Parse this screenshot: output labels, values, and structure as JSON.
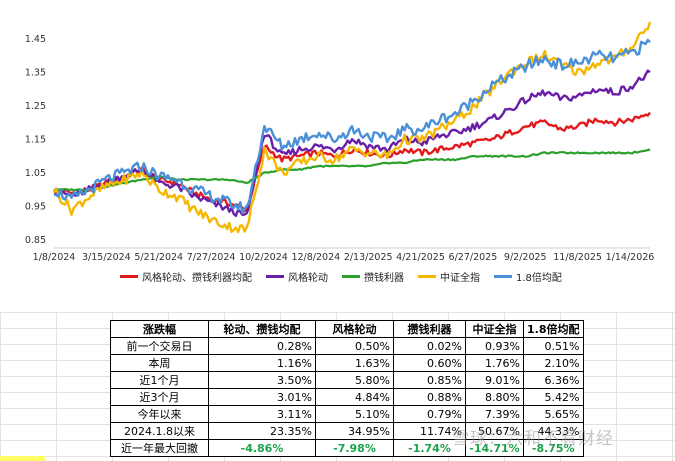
{
  "chart_data": {
    "type": "line",
    "title": "",
    "xlabel": "",
    "ylabel": "",
    "x_ticks": [
      "1/8/2024",
      "3/15/2024",
      "5/21/2024",
      "7/27/2024",
      "10/2/2024",
      "12/8/2024",
      "2/13/2025",
      "4/21/2025",
      "6/27/2025",
      "9/2/2025",
      "11/8/2025",
      "1/14/2026"
    ],
    "y_ticks": [
      "0.85",
      "0.95",
      "1.05",
      "1.15",
      "1.25",
      "1.35",
      "1.45"
    ],
    "ylim": [
      0.85,
      1.5
    ],
    "grid": false,
    "legend_position": "bottom",
    "series": [
      {
        "name": "风格轮动、攒钱利器均配",
        "color": "#e31a1c",
        "values": [
          1.0,
          0.99,
          1.0,
          1.02,
          1.04,
          1.06,
          1.03,
          1.02,
          0.99,
          0.97,
          0.96,
          0.94,
          1.13,
          1.09,
          1.1,
          1.11,
          1.1,
          1.12,
          1.11,
          1.1,
          1.12,
          1.11,
          1.12,
          1.13,
          1.14,
          1.15,
          1.17,
          1.19,
          1.2,
          1.18,
          1.19,
          1.21,
          1.2,
          1.21,
          1.23
        ]
      },
      {
        "name": "风格轮动",
        "color": "#6a1fa8",
        "values": [
          1.0,
          0.98,
          1.0,
          1.02,
          1.04,
          1.06,
          1.02,
          1.01,
          0.98,
          0.96,
          0.94,
          0.92,
          1.17,
          1.1,
          1.12,
          1.13,
          1.12,
          1.15,
          1.13,
          1.12,
          1.15,
          1.14,
          1.16,
          1.17,
          1.19,
          1.21,
          1.24,
          1.27,
          1.29,
          1.27,
          1.28,
          1.3,
          1.29,
          1.31,
          1.35
        ]
      },
      {
        "name": "攒钱利器",
        "color": "#2ca02c",
        "values": [
          1.0,
          1.0,
          1.0,
          1.01,
          1.02,
          1.03,
          1.04,
          1.03,
          1.03,
          1.03,
          1.03,
          1.02,
          1.05,
          1.06,
          1.06,
          1.07,
          1.07,
          1.07,
          1.07,
          1.08,
          1.08,
          1.09,
          1.09,
          1.09,
          1.1,
          1.1,
          1.1,
          1.1,
          1.11,
          1.11,
          1.11,
          1.11,
          1.11,
          1.11,
          1.12
        ]
      },
      {
        "name": "中证全指",
        "color": "#f5b800",
        "values": [
          1.0,
          0.94,
          0.98,
          1.01,
          1.03,
          1.05,
          1.0,
          0.98,
          0.94,
          0.91,
          0.89,
          0.88,
          1.12,
          1.05,
          1.08,
          1.1,
          1.09,
          1.12,
          1.11,
          1.1,
          1.15,
          1.15,
          1.18,
          1.21,
          1.25,
          1.3,
          1.35,
          1.38,
          1.4,
          1.37,
          1.35,
          1.38,
          1.39,
          1.43,
          1.5
        ]
      },
      {
        "name": "1.8倍均配",
        "color": "#4a90d9",
        "values": [
          1.0,
          0.97,
          1.0,
          1.03,
          1.05,
          1.07,
          1.04,
          1.03,
          1.0,
          0.98,
          0.96,
          0.94,
          1.19,
          1.13,
          1.15,
          1.17,
          1.15,
          1.18,
          1.16,
          1.15,
          1.18,
          1.18,
          1.21,
          1.23,
          1.27,
          1.31,
          1.34,
          1.37,
          1.39,
          1.37,
          1.38,
          1.4,
          1.39,
          1.41,
          1.44
        ]
      }
    ]
  },
  "table": {
    "headers": [
      "涨跌幅",
      "轮动、攒钱均配",
      "风格轮动",
      "攒钱利器",
      "中证全指",
      "1.8倍均配"
    ],
    "rows": [
      {
        "label": "前一个交易日",
        "values": [
          "0.28%",
          "0.50%",
          "0.02%",
          "0.93%",
          "0.51%"
        ]
      },
      {
        "label": "本周",
        "values": [
          "1.16%",
          "1.63%",
          "0.60%",
          "1.76%",
          "2.10%"
        ]
      },
      {
        "label": "近1个月",
        "values": [
          "3.50%",
          "5.80%",
          "0.85%",
          "9.01%",
          "6.36%"
        ]
      },
      {
        "label": "近3个月",
        "values": [
          "3.01%",
          "4.84%",
          "0.88%",
          "8.80%",
          "5.42%"
        ]
      },
      {
        "label": "今年以来",
        "values": [
          "3.11%",
          "5.10%",
          "0.79%",
          "7.39%",
          "5.65%"
        ]
      },
      {
        "label": "2024.1.8以来",
        "values": [
          "23.35%",
          "34.95%",
          "11.74%",
          "50.67%",
          "44.33%"
        ]
      },
      {
        "label": "近一年最大回撤",
        "values": [
          "-4.86%",
          "-7.98%",
          "-1.74%",
          "-14.71%",
          "-8.75%"
        ]
      }
    ]
  },
  "watermark": "雪球：六和不看财经",
  "colors": {
    "negative": "#1aa34a",
    "highlight": "#ffff66"
  }
}
